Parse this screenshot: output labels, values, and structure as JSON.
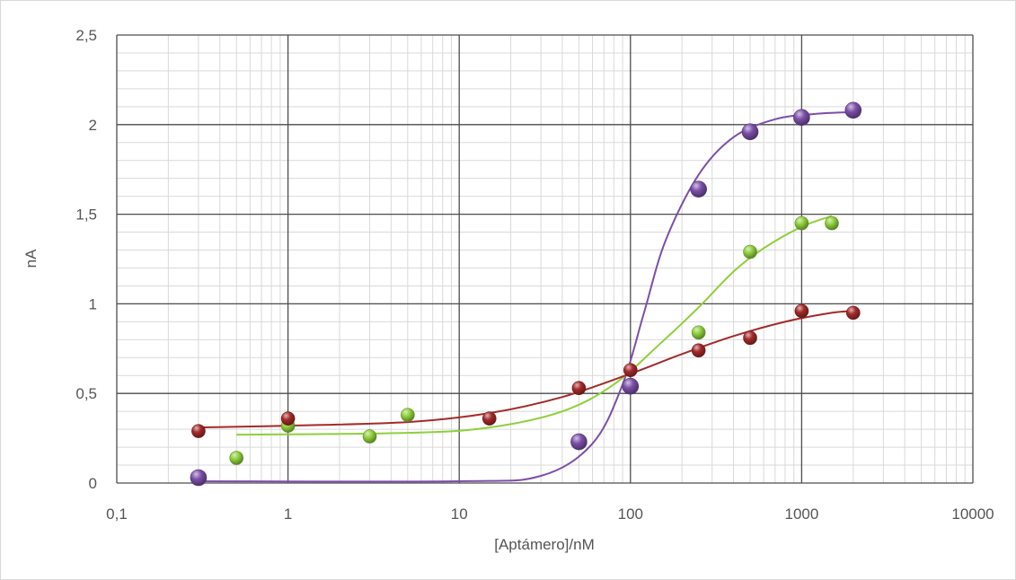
{
  "chart_data": {
    "type": "scatter",
    "title": "",
    "xlabel": "[Aptámero]/nM",
    "ylabel": "nA",
    "x_scale": "log",
    "xlim": [
      0.1,
      10000
    ],
    "ylim": [
      0,
      2.5
    ],
    "x_tick_labels": [
      "0,1",
      "1",
      "10",
      "100",
      "1000",
      "10000"
    ],
    "y_tick_labels": [
      "0",
      "0,5",
      "1",
      "1,5",
      "2",
      "2,5"
    ],
    "grid": true,
    "legend": "none",
    "series": [
      {
        "color": "#7b4fa8",
        "marker": "sphere",
        "points": [
          {
            "x": 0.3,
            "y": 0.03
          },
          {
            "x": 50,
            "y": 0.23
          },
          {
            "x": 100,
            "y": 0.54
          },
          {
            "x": 250,
            "y": 1.64
          },
          {
            "x": 500,
            "y": 1.96
          },
          {
            "x": 1000,
            "y": 2.04
          },
          {
            "x": 2000,
            "y": 2.08
          }
        ],
        "fit_curve": [
          {
            "x": 0.3,
            "y": 0.01
          },
          {
            "x": 10,
            "y": 0.01
          },
          {
            "x": 30,
            "y": 0.04
          },
          {
            "x": 60,
            "y": 0.22
          },
          {
            "x": 90,
            "y": 0.55
          },
          {
            "x": 120,
            "y": 0.95
          },
          {
            "x": 160,
            "y": 1.35
          },
          {
            "x": 250,
            "y": 1.72
          },
          {
            "x": 400,
            "y": 1.93
          },
          {
            "x": 700,
            "y": 2.03
          },
          {
            "x": 1200,
            "y": 2.06
          },
          {
            "x": 2000,
            "y": 2.07
          }
        ]
      },
      {
        "color": "#8fcf3c",
        "marker": "sphere",
        "points": [
          {
            "x": 0.5,
            "y": 0.14
          },
          {
            "x": 1,
            "y": 0.32
          },
          {
            "x": 3,
            "y": 0.26
          },
          {
            "x": 5,
            "y": 0.38
          },
          {
            "x": 250,
            "y": 0.84
          },
          {
            "x": 500,
            "y": 1.29
          },
          {
            "x": 1000,
            "y": 1.45
          },
          {
            "x": 1500,
            "y": 1.45
          }
        ],
        "fit_curve": [
          {
            "x": 0.5,
            "y": 0.27
          },
          {
            "x": 5,
            "y": 0.28
          },
          {
            "x": 15,
            "y": 0.31
          },
          {
            "x": 40,
            "y": 0.4
          },
          {
            "x": 80,
            "y": 0.55
          },
          {
            "x": 150,
            "y": 0.78
          },
          {
            "x": 250,
            "y": 0.98
          },
          {
            "x": 400,
            "y": 1.18
          },
          {
            "x": 600,
            "y": 1.31
          },
          {
            "x": 1000,
            "y": 1.43
          },
          {
            "x": 1500,
            "y": 1.49
          }
        ]
      },
      {
        "color": "#a32a2a",
        "marker": "sphere",
        "points": [
          {
            "x": 0.3,
            "y": 0.29
          },
          {
            "x": 1,
            "y": 0.36
          },
          {
            "x": 15,
            "y": 0.36
          },
          {
            "x": 50,
            "y": 0.53
          },
          {
            "x": 100,
            "y": 0.63
          },
          {
            "x": 250,
            "y": 0.74
          },
          {
            "x": 500,
            "y": 0.81
          },
          {
            "x": 1000,
            "y": 0.96
          },
          {
            "x": 2000,
            "y": 0.95
          }
        ],
        "fit_curve": [
          {
            "x": 0.3,
            "y": 0.31
          },
          {
            "x": 1,
            "y": 0.32
          },
          {
            "x": 5,
            "y": 0.34
          },
          {
            "x": 15,
            "y": 0.39
          },
          {
            "x": 40,
            "y": 0.48
          },
          {
            "x": 100,
            "y": 0.61
          },
          {
            "x": 200,
            "y": 0.72
          },
          {
            "x": 400,
            "y": 0.82
          },
          {
            "x": 800,
            "y": 0.9
          },
          {
            "x": 1500,
            "y": 0.95
          },
          {
            "x": 2000,
            "y": 0.96
          }
        ]
      }
    ]
  }
}
